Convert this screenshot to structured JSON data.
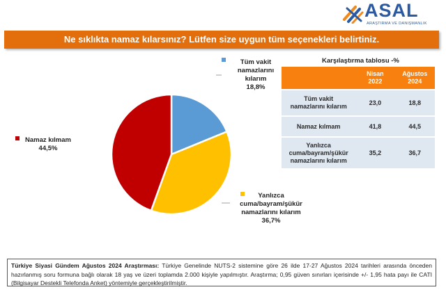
{
  "logo": {
    "name": "ASAL",
    "subtitle": "ARAŞTIRMA VE DANIŞMANLIK"
  },
  "question": "Ne sıklıkta namaz kılarsınız? Lütfen size uygun tüm seçenekleri belirtiniz.",
  "chart_data": {
    "type": "pie",
    "slices": [
      {
        "label": "Tüm vakit namazlarını kılarım",
        "value": 18.8,
        "display": "18,8%",
        "color": "#5b9bd5"
      },
      {
        "label": "Yanlızca cuma/bayram/şükür namazlarını kılarım",
        "value": 36.7,
        "display": "36,7%",
        "color": "#ffc000"
      },
      {
        "label": "Namaz kılmam",
        "value": 44.5,
        "display": "44,5%",
        "color": "#c00000"
      }
    ]
  },
  "labels": {
    "tum_l1": "Tüm vakit",
    "tum_l2": "namazlarını",
    "tum_l3": "kılarım",
    "tum_val": "18,8%",
    "yan_l1": "Yanlızca",
    "yan_l2": "cuma/bayram/şükür",
    "yan_l3": "namazlarını kılarım",
    "yan_val": "36,7%",
    "nam_l1": "Namaz kılmam",
    "nam_val": "44,5%"
  },
  "comparison": {
    "title": "Karşılaştırma tablosu  -%",
    "col1_l1": "Nisan",
    "col1_l2": "2022",
    "col2_l1": "Ağustos",
    "col2_l2": "2024",
    "rows": [
      {
        "l1": "Tüm vakit",
        "l2": "namazlarını kılarım",
        "l3": "",
        "v1": "23,0",
        "v2": "18,8"
      },
      {
        "l1": "Namaz kılmam",
        "l2": "",
        "l3": "",
        "v1": "41,8",
        "v2": "44,5"
      },
      {
        "l1": "Yanlızca",
        "l2": "cuma/bayram/şükür",
        "l3": "namazlarını kılarım",
        "v1": "35,2",
        "v2": "36,7"
      }
    ]
  },
  "footer": {
    "bold": "Türkiye Siyasi Gündem Ağustos 2024 Araştırması:",
    "text": " Türkiye Genelinde NUTS-2 sistemine göre 26 ilde 17-27 Ağustos 2024 tarihleri arasında önceden hazırlanmış soru formuna bağlı olarak 18 yaş ve üzeri toplamda 2.000 kişiyle yapılmıştır. Araştırma; 0,95 güven sınırları içerisinde +/- 1,95 hata payı ile CATI (Bilgisayar Destekli Telefonda Anket) yöntemiyle gerçekleştirilmiştir."
  }
}
